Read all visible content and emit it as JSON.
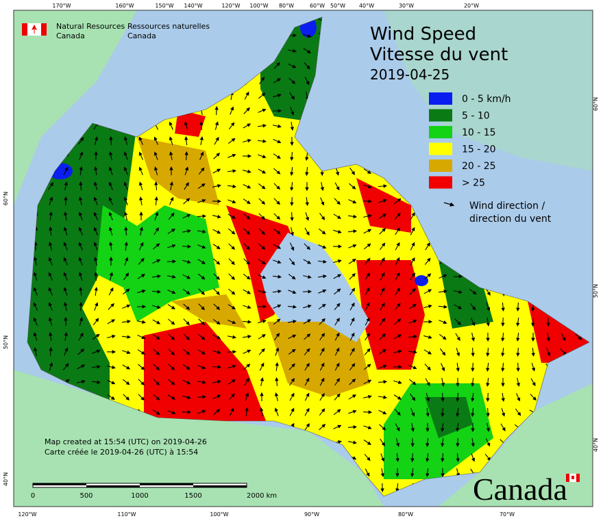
{
  "header": {
    "department_en": [
      "Natural Resources",
      "Canada"
    ],
    "department_fr": [
      "Ressources naturelles",
      "Canada"
    ]
  },
  "title": {
    "line_en": "Wind Speed",
    "line_fr": "Vitesse du vent",
    "date": "2019-04-25"
  },
  "legend": {
    "items": [
      {
        "label": "0 - 5 km/h",
        "color": "#0a1ef0"
      },
      {
        "label": "5 - 10",
        "color": "#0a7a14"
      },
      {
        "label": "10 - 15",
        "color": "#14d214"
      },
      {
        "label": "15 - 20",
        "color": "#ffff00"
      },
      {
        "label": "20 - 25",
        "color": "#d7a800"
      },
      {
        "label": "> 25",
        "color": "#f00000"
      }
    ],
    "wind_direction": [
      "Wind direction /",
      "direction du vent"
    ]
  },
  "footer": {
    "created_en": "Map created at 15:54 (UTC) on 2019-04-26",
    "created_fr": "Carte créée le 2019-04-26 (UTC) à 15:54"
  },
  "scale_bar": {
    "labels": [
      "0",
      "500",
      "1000",
      "1500",
      "2000 km"
    ]
  },
  "graticule": {
    "top": [
      "170°W",
      "160°W",
      "150°W",
      "140°W",
      "120°W",
      "100°W",
      "80°W",
      "60°W",
      "50°W",
      "40°W",
      "30°W",
      "20°W"
    ],
    "bottom": [
      "120°W",
      "110°W",
      "100°W",
      "90°W",
      "80°W",
      "70°W"
    ],
    "left": [
      "60°N",
      "50°N",
      "40°N"
    ],
    "right": [
      "60°N",
      "50°N",
      "40°N"
    ]
  },
  "wordmark": "Canada"
}
